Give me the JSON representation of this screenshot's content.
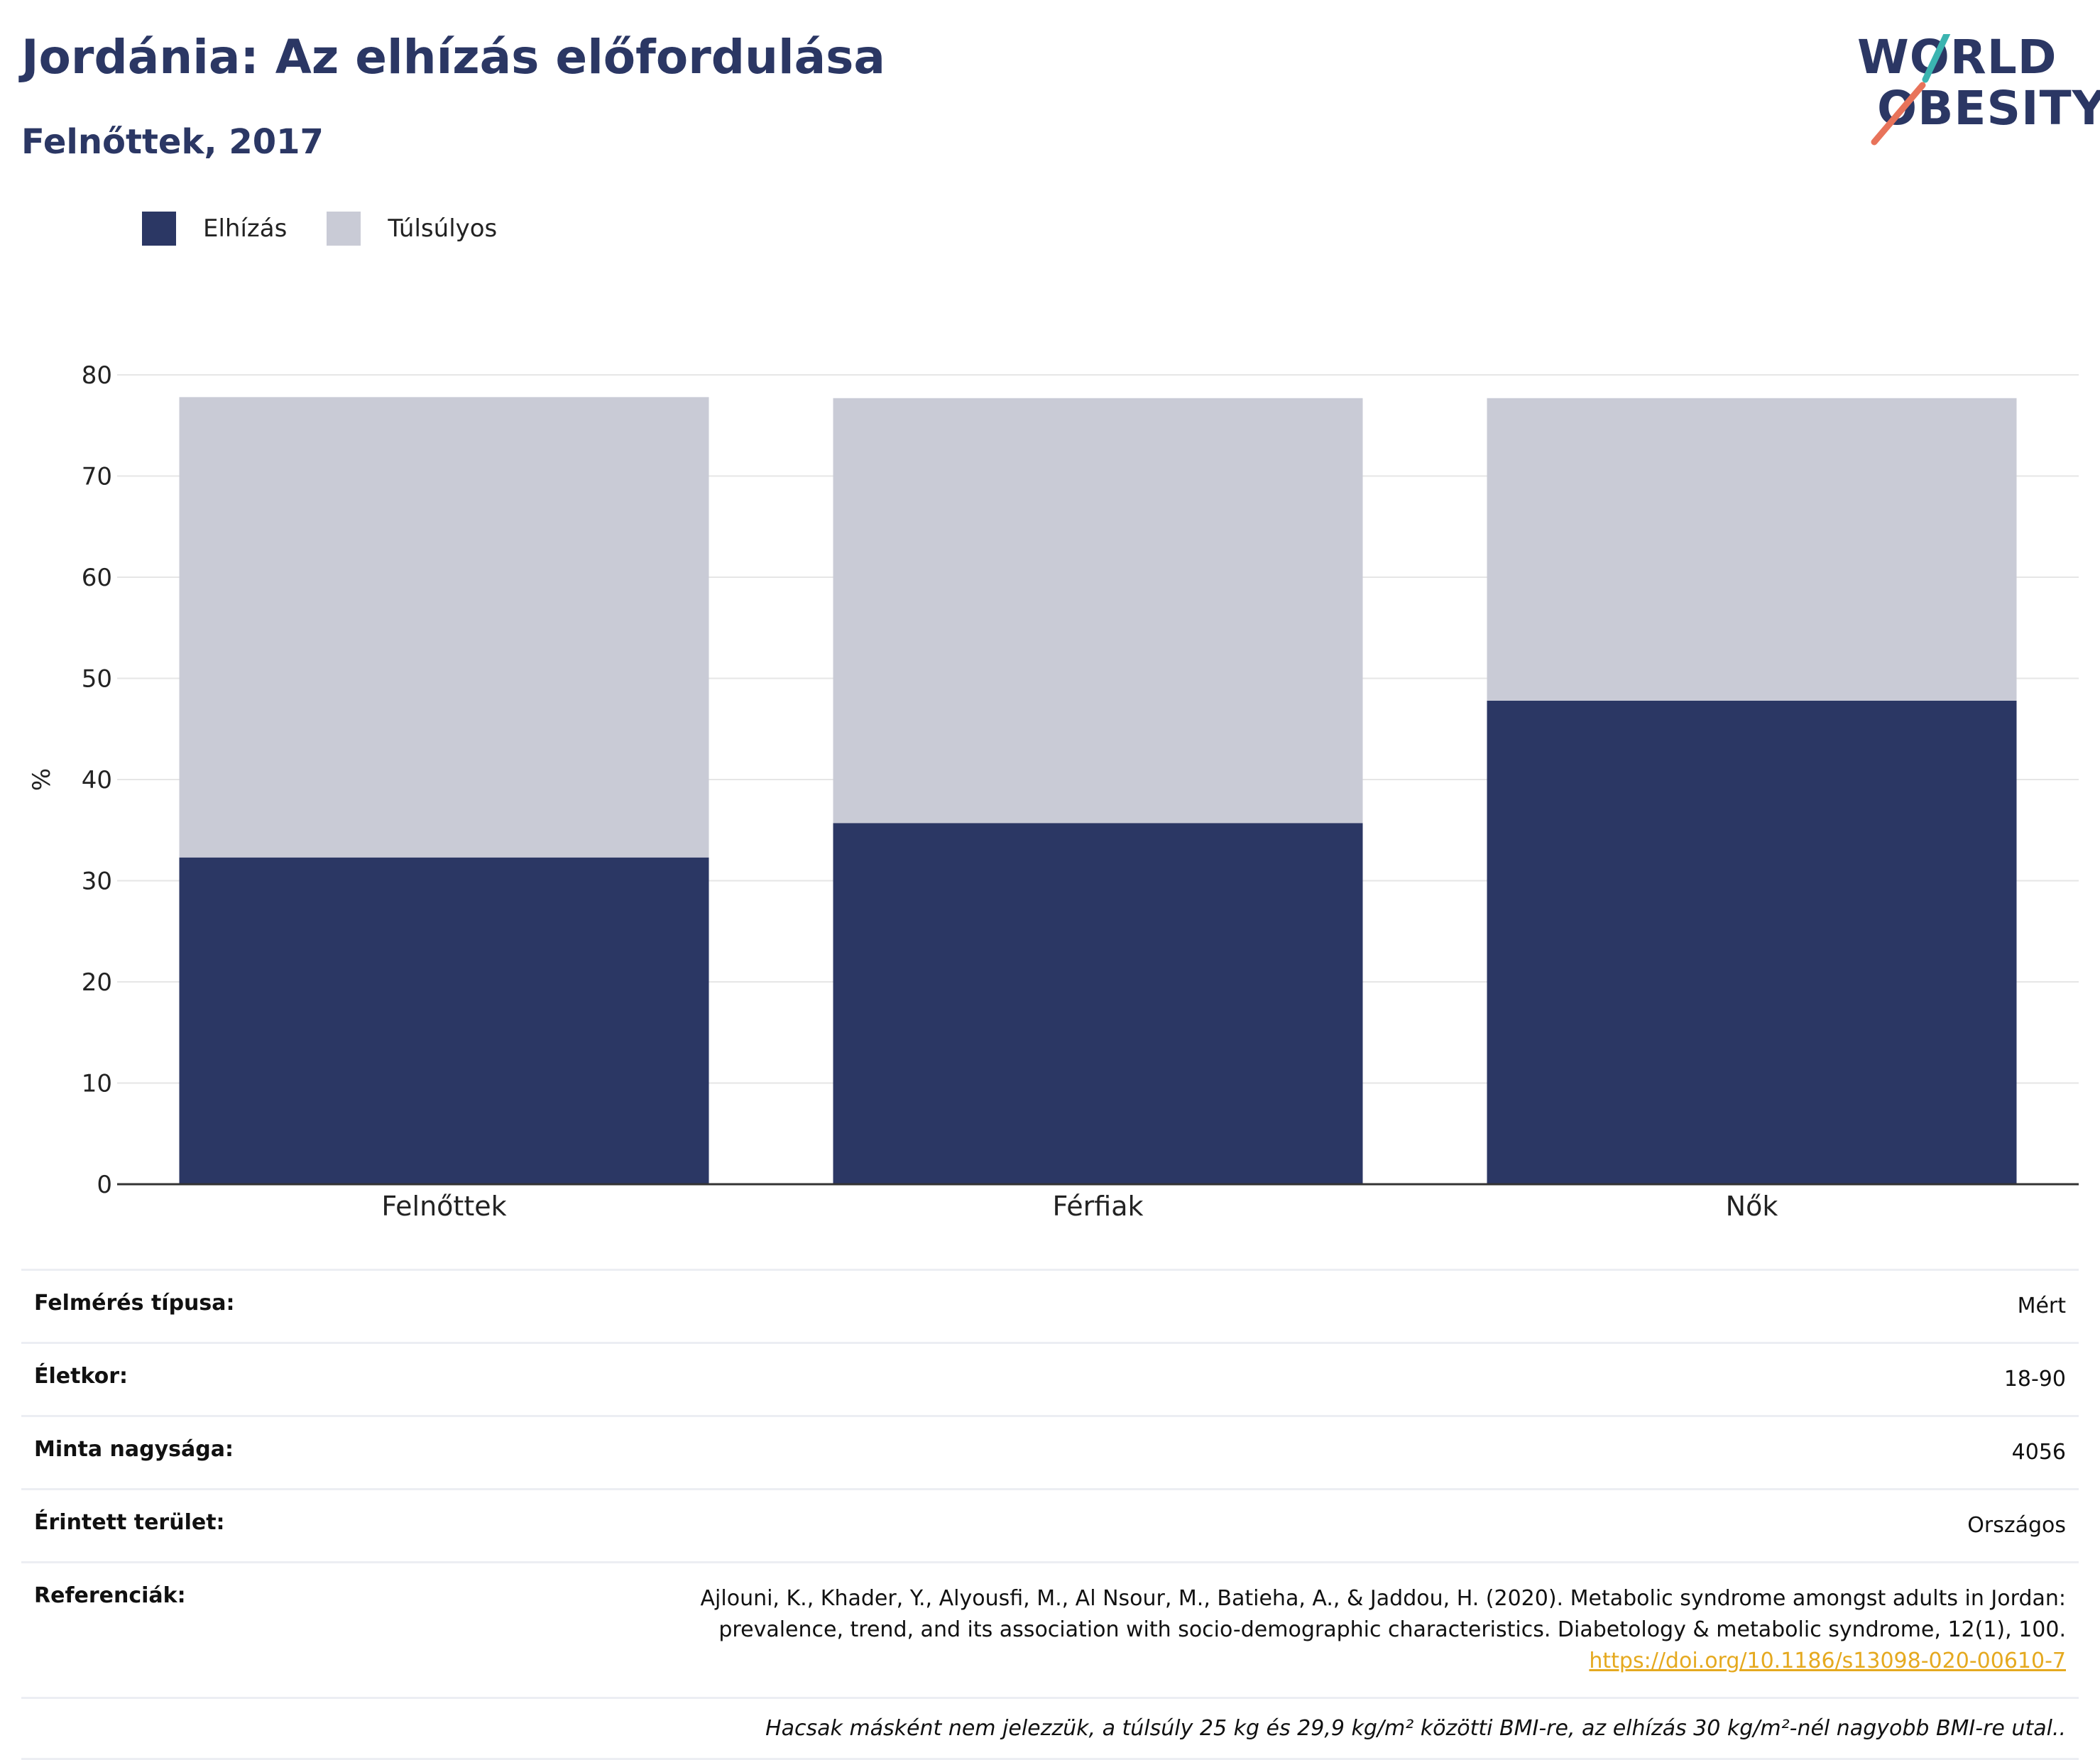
{
  "header": {
    "title": "Jordánia: Az elhízás előfordulása",
    "subtitle": "Felnőttek, 2017"
  },
  "logo": {
    "line1": "WORLD",
    "line2": "OBESITY",
    "accent_teal": "#3bb4b0",
    "accent_coral": "#e8735a"
  },
  "legend": [
    {
      "label": "Elhízás",
      "color": "#2b3764"
    },
    {
      "label": "Túlsúlyos",
      "color": "#c9cbd6"
    }
  ],
  "chart_data": {
    "type": "bar",
    "stacked": true,
    "categories": [
      "Felnőttek",
      "Férfiak",
      "Nők"
    ],
    "series": [
      {
        "name": "Elhízás",
        "color": "#2b3764",
        "values": [
          32.3,
          35.7,
          47.8
        ]
      },
      {
        "name": "Túlsúlyos",
        "color": "#c9cbd6",
        "values": [
          45.5,
          42.0,
          29.9
        ]
      }
    ],
    "ylabel": "%",
    "ylim": [
      0,
      80
    ],
    "yticks": [
      0,
      10,
      20,
      30,
      40,
      50,
      60,
      70,
      80
    ],
    "grid": true,
    "legend_position": "top-left"
  },
  "meta": {
    "survey_type": {
      "label": "Felmérés típusa:",
      "value": "Mért"
    },
    "age": {
      "label": "Életkor:",
      "value": "18-90"
    },
    "sample_size": {
      "label": "Minta nagysága:",
      "value": "4056"
    },
    "area": {
      "label": "Érintett terület:",
      "value": "Országos"
    },
    "references": {
      "label": "Referenciák:",
      "line1": "Ajlouni, K., Khader, Y., Alyousfi, M., Al Nsour, M., Batieha, A., & Jaddou, H. (2020). Metabolic syndrome amongst adults in Jordan:",
      "line2": "prevalence, trend, and its association with socio-demographic characteristics. Diabetology & metabolic syndrome, 12(1), 100.",
      "link": "https://doi.org/10.1186/s13098-020-00610-7"
    },
    "note": "Hacsak másként nem jelezzük, a túlsúly 25 kg és 29,9 kg/m² közötti BMI-re, az elhízás 30 kg/m²-nél nagyobb BMI-re utal.."
  }
}
